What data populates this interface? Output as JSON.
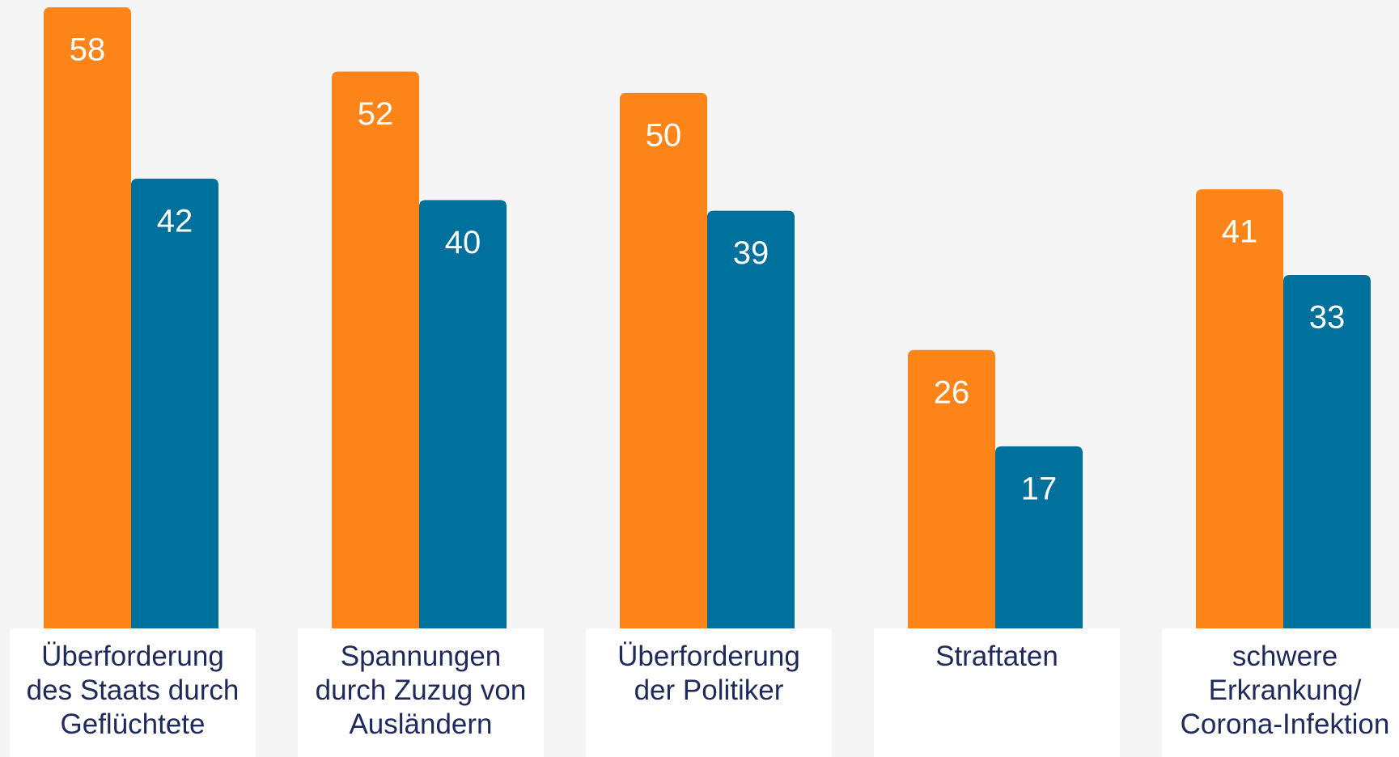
{
  "chart_data": {
    "type": "bar",
    "categories": [
      "Überforderung des Staats durch Geflüchtete",
      "Spannungen durch Zuzug von Ausländern",
      "Überforderung der Politiker",
      "Straftaten",
      "schwere Erkrankung/ Corona-Infektion"
    ],
    "series": [
      {
        "color": "#fd8418",
        "values": [
          58,
          52,
          50,
          26,
          41
        ]
      },
      {
        "color": "#00709c",
        "values": [
          42,
          40,
          39,
          17,
          33
        ]
      }
    ]
  }
}
